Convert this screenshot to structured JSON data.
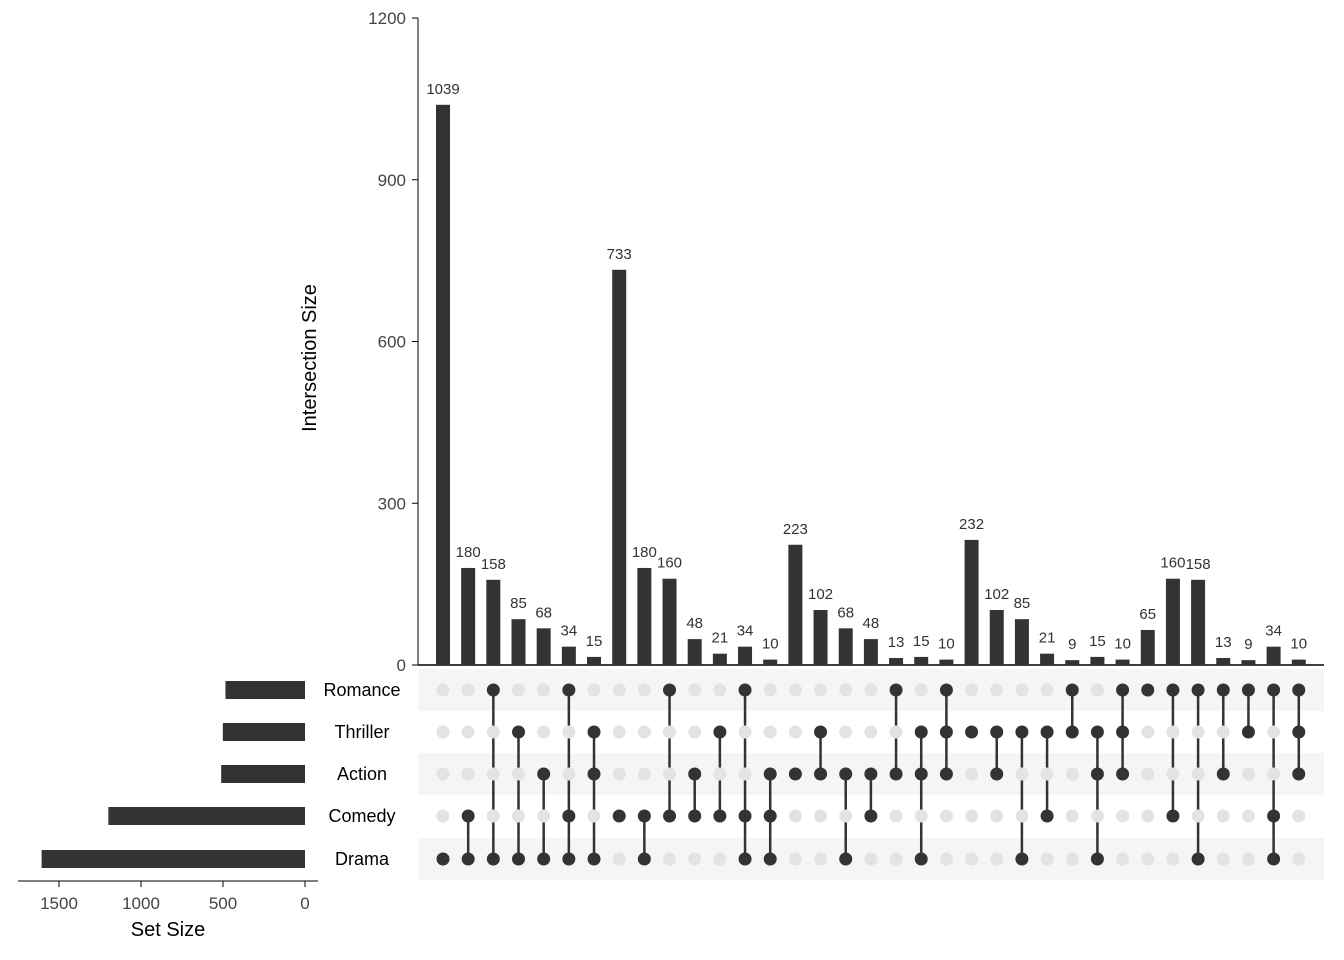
{
  "chart_data": {
    "type": "bar",
    "subtype": "upset",
    "ylabel": "Intersection Size",
    "xlabel_set_size": "Set Size",
    "ylim": [
      0,
      1200
    ],
    "yticks": [
      0,
      300,
      600,
      900,
      1200
    ],
    "set_size_ticks": [
      1500,
      1000,
      500,
      0
    ],
    "set_size_xlim": [
      0,
      1750
    ],
    "colors": {
      "bar": "#333333",
      "dot_on": "#333333",
      "dot_off": "#e3e3e3",
      "stripe": "#f5f5f5"
    },
    "sets": [
      {
        "name": "Romance",
        "size": 485
      },
      {
        "name": "Thriller",
        "size": 501
      },
      {
        "name": "Action",
        "size": 511
      },
      {
        "name": "Comedy",
        "size": 1199
      },
      {
        "name": "Drama",
        "size": 1606
      }
    ],
    "intersections": [
      {
        "value": 1039,
        "label": "1039",
        "members": [
          "Drama"
        ]
      },
      {
        "value": 180,
        "label": "180",
        "members": [
          "Comedy",
          "Drama"
        ]
      },
      {
        "value": 158,
        "label": "158",
        "members": [
          "Romance",
          "Drama"
        ]
      },
      {
        "value": 85,
        "label": "85",
        "members": [
          "Thriller",
          "Drama"
        ]
      },
      {
        "value": 68,
        "label": "68",
        "members": [
          "Action",
          "Drama"
        ]
      },
      {
        "value": 34,
        "label": "34",
        "members": [
          "Romance",
          "Comedy",
          "Drama"
        ]
      },
      {
        "value": 15,
        "label": "15",
        "members": [
          "Thriller",
          "Action",
          "Drama"
        ]
      },
      {
        "value": 733,
        "label": "733",
        "members": [
          "Comedy"
        ]
      },
      {
        "value": 180,
        "label": "180",
        "members": [
          "Comedy",
          "Drama"
        ]
      },
      {
        "value": 160,
        "label": "160",
        "members": [
          "Romance",
          "Comedy"
        ]
      },
      {
        "value": 48,
        "label": "48",
        "members": [
          "Action",
          "Comedy"
        ]
      },
      {
        "value": 21,
        "label": "21",
        "members": [
          "Thriller",
          "Comedy"
        ]
      },
      {
        "value": 34,
        "label": "34",
        "members": [
          "Romance",
          "Comedy",
          "Drama"
        ]
      },
      {
        "value": 10,
        "label": "10",
        "members": [
          "Action",
          "Comedy",
          "Drama"
        ]
      },
      {
        "value": 223,
        "label": "223",
        "members": [
          "Action"
        ]
      },
      {
        "value": 102,
        "label": "102",
        "members": [
          "Thriller",
          "Action"
        ]
      },
      {
        "value": 68,
        "label": "68",
        "members": [
          "Action",
          "Drama"
        ]
      },
      {
        "value": 48,
        "label": "48",
        "members": [
          "Action",
          "Comedy"
        ]
      },
      {
        "value": 13,
        "label": "13",
        "members": [
          "Romance",
          "Action"
        ]
      },
      {
        "value": 15,
        "label": "15",
        "members": [
          "Thriller",
          "Action",
          "Drama"
        ]
      },
      {
        "value": 10,
        "label": "10",
        "members": [
          "Romance",
          "Thriller",
          "Action"
        ]
      },
      {
        "value": 232,
        "label": "232",
        "members": [
          "Thriller"
        ]
      },
      {
        "value": 102,
        "label": "102",
        "members": [
          "Thriller",
          "Action"
        ]
      },
      {
        "value": 85,
        "label": "85",
        "members": [
          "Thriller",
          "Drama"
        ]
      },
      {
        "value": 21,
        "label": "21",
        "members": [
          "Thriller",
          "Comedy"
        ]
      },
      {
        "value": 9,
        "label": "9",
        "members": [
          "Romance",
          "Thriller"
        ]
      },
      {
        "value": 15,
        "label": "15",
        "members": [
          "Thriller",
          "Action",
          "Drama"
        ]
      },
      {
        "value": 10,
        "label": "10",
        "members": [
          "Romance",
          "Thriller",
          "Action"
        ]
      },
      {
        "value": 65,
        "label": "65",
        "members": [
          "Romance"
        ]
      },
      {
        "value": 160,
        "label": "160",
        "members": [
          "Romance",
          "Comedy"
        ]
      },
      {
        "value": 158,
        "label": "158",
        "members": [
          "Romance",
          "Drama"
        ]
      },
      {
        "value": 13,
        "label": "13",
        "members": [
          "Romance",
          "Action"
        ]
      },
      {
        "value": 9,
        "label": "9",
        "members": [
          "Romance",
          "Thriller"
        ]
      },
      {
        "value": 34,
        "label": "34",
        "members": [
          "Romance",
          "Comedy",
          "Drama"
        ]
      },
      {
        "value": 10,
        "label": "10",
        "members": [
          "Romance",
          "Thriller",
          "Action"
        ]
      }
    ]
  }
}
